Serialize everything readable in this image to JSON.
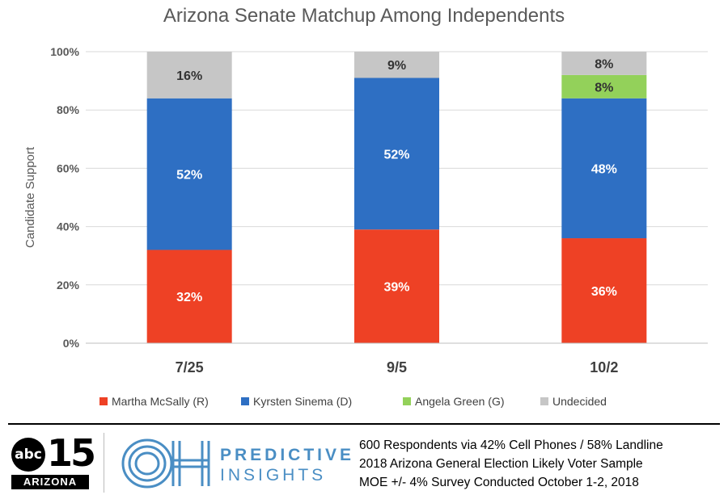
{
  "chart_data": {
    "type": "bar",
    "stacked": true,
    "title": "Arizona Senate Matchup Among Independents",
    "xlabel": "",
    "ylabel": "Candidate Support",
    "ylim": [
      0,
      100
    ],
    "yticks": [
      "0%",
      "20%",
      "40%",
      "60%",
      "80%",
      "100%"
    ],
    "categories": [
      "7/25",
      "9/5",
      "10/2"
    ],
    "series": [
      {
        "name": "Martha McSally (R)",
        "color": "#ee4125",
        "values": [
          32,
          39,
          36
        ],
        "labels": [
          "32%",
          "39%",
          "36%"
        ],
        "label_color": "#ffffff"
      },
      {
        "name": "Kyrsten Sinema (D)",
        "color": "#2e6fc3",
        "values": [
          52,
          52,
          48
        ],
        "labels": [
          "52%",
          "52%",
          "48%"
        ],
        "label_color": "#ffffff"
      },
      {
        "name": "Angela Green (G)",
        "color": "#93d15a",
        "values": [
          0,
          0,
          8
        ],
        "labels": [
          "",
          "",
          "8%"
        ],
        "label_color": "#333333"
      },
      {
        "name": "Undecided",
        "color": "#c6c6c6",
        "values": [
          16,
          9,
          8
        ],
        "labels": [
          "16%",
          "9%",
          "8%"
        ],
        "label_color": "#333333"
      }
    ],
    "grid": true,
    "legend_position": "bottom"
  },
  "footer": {
    "abc_logo_text": "abc",
    "abc_logo_number": "15",
    "abc_logo_state": "ARIZONA",
    "partner_logo_mark": "OH",
    "partner_line1": "PREDICTIVE",
    "partner_line2": "INSIGHTS",
    "notes": [
      "600 Respondents via 42% Cell Phones / 58% Landline",
      "2018 Arizona General Election Likely Voter Sample",
      "MOE +/- 4% Survey Conducted October 1-2, 2018"
    ]
  }
}
